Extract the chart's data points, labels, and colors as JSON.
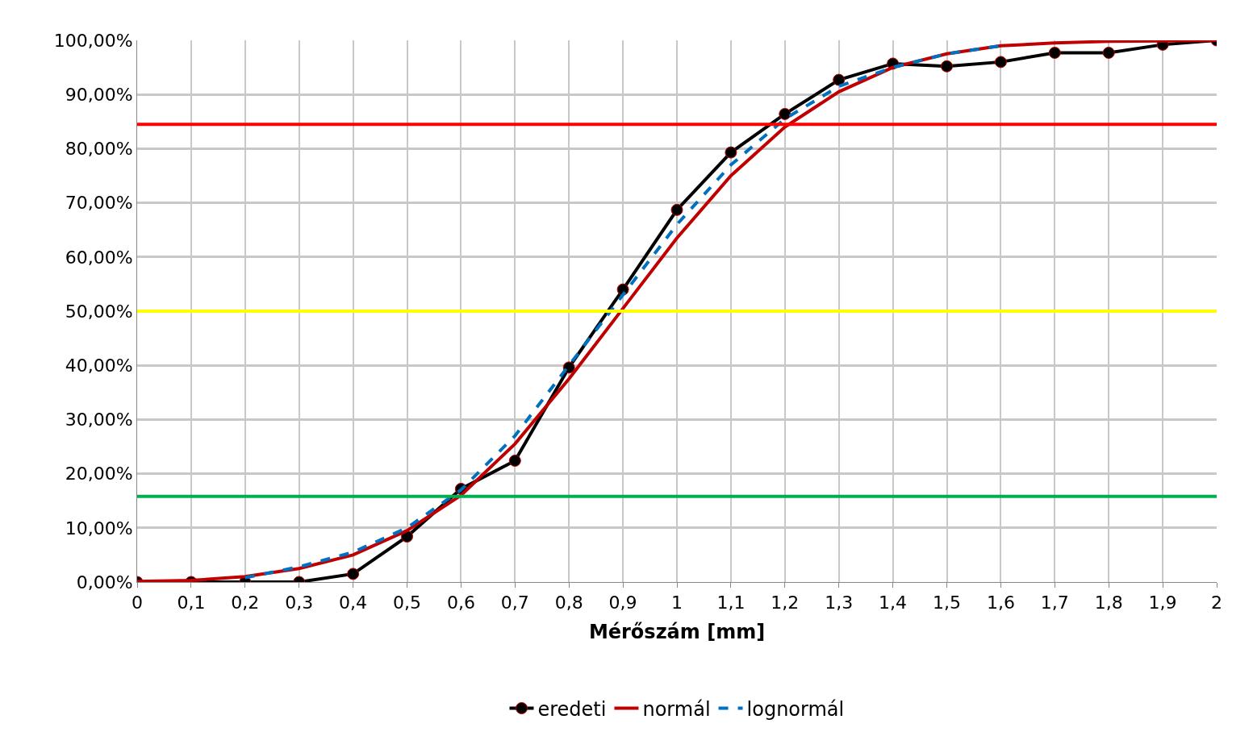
{
  "chart_data": {
    "type": "line",
    "xlabel": "Mérőszám [mm]",
    "x": [
      0,
      0.1,
      0.2,
      0.3,
      0.4,
      0.5,
      0.6,
      0.7,
      0.8,
      0.9,
      1.0,
      1.1,
      1.2,
      1.3,
      1.4,
      1.5,
      1.6,
      1.7,
      1.8,
      1.9,
      2.0
    ],
    "series": [
      {
        "name": "eredeti",
        "color": "#000000",
        "marker": "circle",
        "line_style": "solid",
        "values": [
          0,
          0,
          0,
          0,
          1.5,
          8.4,
          17.2,
          22.4,
          39.6,
          54,
          68.7,
          79.3,
          86.4,
          92.7,
          95.7,
          95.2,
          96,
          97.7,
          97.7,
          99.2,
          100
        ]
      },
      {
        "name": "normál",
        "color": "#c00000",
        "marker": "none",
        "line_style": "solid",
        "values": [
          0.1,
          0.3,
          1,
          2.5,
          5,
          9.5,
          16,
          25.5,
          37.5,
          50.5,
          63.5,
          75,
          84,
          90.5,
          95,
          97.5,
          99,
          99.5,
          99.8,
          99.9,
          100
        ]
      },
      {
        "name": "lognormál",
        "color": "#0070c0",
        "marker": "none",
        "line_style": "dashed",
        "values": [
          null,
          null,
          0.8,
          2.8,
          5.5,
          10,
          17,
          27,
          40,
          53,
          66,
          77,
          85.5,
          91.5,
          95,
          97.5,
          99,
          null,
          null,
          null,
          null
        ]
      }
    ],
    "ref_lines": [
      {
        "axis": "y",
        "value": 84.5,
        "label": null,
        "color": "#ff0000",
        "line_style": "solid"
      },
      {
        "axis": "y",
        "value": 50,
        "label": null,
        "color": "#ffff00",
        "line_style": "solid"
      },
      {
        "axis": "y",
        "value": 15.8,
        "label": null,
        "color": "#00b050",
        "line_style": "solid"
      }
    ],
    "xlim": [
      0,
      2
    ],
    "xticks": [
      0,
      {
        "value": 0.1,
        "label": "0,1"
      },
      {
        "value": 0.2,
        "label": "0,2"
      },
      {
        "value": 0.3,
        "label": "0,3"
      },
      {
        "value": 0.4,
        "label": "0,4"
      },
      {
        "value": 0.5,
        "label": "0,5"
      },
      {
        "value": 0.6,
        "label": "0,6"
      },
      {
        "value": 0.7,
        "label": "0,7"
      },
      {
        "value": 0.8,
        "label": "0,8"
      },
      {
        "value": 0.9,
        "label": "0,9"
      },
      1,
      {
        "value": 1.1,
        "label": "1,1"
      },
      {
        "value": 1.2,
        "label": "1,2"
      },
      {
        "value": 1.3,
        "label": "1,3"
      },
      {
        "value": 1.4,
        "label": "1,4"
      },
      {
        "value": 1.5,
        "label": "1,5"
      },
      {
        "value": 1.6,
        "label": "1,6"
      },
      {
        "value": 1.7,
        "label": "1,7"
      },
      {
        "value": 1.8,
        "label": "1,8"
      },
      {
        "value": 1.9,
        "label": "1,9"
      },
      2
    ],
    "ylim": [
      0,
      100
    ],
    "yticks": [
      {
        "value": 0,
        "label": "0,00%"
      },
      {
        "value": 10,
        "label": "10,00%"
      },
      {
        "value": 20,
        "label": "20,00%"
      },
      {
        "value": 30,
        "label": "30,00%"
      },
      {
        "value": 40,
        "label": "40,00%"
      },
      {
        "value": 50,
        "label": "50,00%"
      },
      {
        "value": 60,
        "label": "60,00%"
      },
      {
        "value": 70,
        "label": "70,00%"
      },
      {
        "value": 80,
        "label": "80,00%"
      },
      {
        "value": 90,
        "label": "90,00%"
      },
      {
        "value": 100,
        "label": "100,00%"
      }
    ],
    "grid": true,
    "legend": "bottom"
  }
}
